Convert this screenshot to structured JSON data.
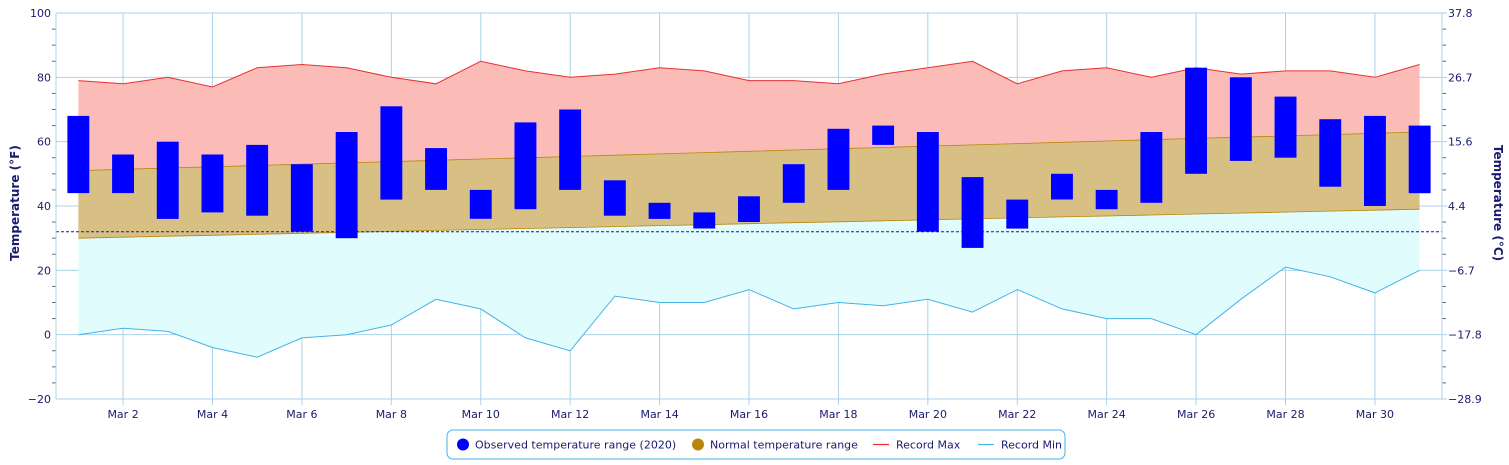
{
  "chart_data": {
    "type": "bar",
    "categories": [
      "Mar 1",
      "Mar 2",
      "Mar 3",
      "Mar 4",
      "Mar 5",
      "Mar 6",
      "Mar 7",
      "Mar 8",
      "Mar 9",
      "Mar 10",
      "Mar 11",
      "Mar 12",
      "Mar 13",
      "Mar 14",
      "Mar 15",
      "Mar 16",
      "Mar 17",
      "Mar 18",
      "Mar 19",
      "Mar 20",
      "Mar 21",
      "Mar 22",
      "Mar 23",
      "Mar 24",
      "Mar 25",
      "Mar 26",
      "Mar 27",
      "Mar 28",
      "Mar 29",
      "Mar 30",
      "Mar 31"
    ],
    "x_tick_labels": [
      "Mar 2",
      "Mar 4",
      "Mar 6",
      "Mar 8",
      "Mar 10",
      "Mar 12",
      "Mar 14",
      "Mar 16",
      "Mar 18",
      "Mar 20",
      "Mar 22",
      "Mar 24",
      "Mar 26",
      "Mar 28",
      "Mar 30"
    ],
    "ylabel": "Temperature (°F)",
    "y2label": "Temperature (°C)",
    "ylim": [
      -20,
      100
    ],
    "y_ticks": [
      "−20",
      "0",
      "20",
      "40",
      "60",
      "80",
      "100"
    ],
    "y2_ticks": [
      "−28.9",
      "−17.8",
      "−6.7",
      "4.4",
      "15.6",
      "26.7",
      "37.8"
    ],
    "freezing_line": 32,
    "grid": true,
    "legend_position": "bottom-center",
    "colors": {
      "observed": "#0000ff",
      "normal_fill": "#d8c084",
      "normal_edge": "#b8860b",
      "normal_legend": "#b8860b",
      "record_max_line": "#e83030",
      "record_max_fill": "#fbbcb8",
      "record_min_line": "#43b3e8",
      "record_min_fill": "#e0fcfc",
      "grid": "#a9d3ea",
      "axis": "#1a1a6e",
      "freezing": "#1a1a8e"
    },
    "series": [
      {
        "name": "Observed temperature range (2020)",
        "low": [
          44,
          44,
          36,
          38,
          37,
          32,
          30,
          42,
          45,
          36,
          39,
          45,
          37,
          36,
          33,
          35,
          41,
          45,
          59,
          32,
          27,
          33,
          42,
          39,
          41,
          50,
          54,
          55,
          46,
          40,
          44
        ],
        "high": [
          68,
          56,
          60,
          56,
          59,
          53,
          63,
          71,
          58,
          45,
          66,
          70,
          48,
          41,
          38,
          43,
          53,
          64,
          65,
          63,
          49,
          42,
          50,
          45,
          63,
          83,
          80,
          74,
          67,
          68,
          65
        ]
      },
      {
        "name": "Normal temperature range",
        "low": [
          30,
          30.3,
          30.6,
          30.9,
          31.2,
          31.5,
          31.8,
          32.1,
          32.4,
          32.7,
          33,
          33.3,
          33.6,
          33.9,
          34.2,
          34.5,
          34.8,
          35.1,
          35.4,
          35.7,
          36,
          36.3,
          36.6,
          36.9,
          37.2,
          37.5,
          37.8,
          38.1,
          38.4,
          38.7,
          39
        ],
        "high": [
          51,
          51.4,
          51.8,
          52.2,
          52.6,
          53,
          53.4,
          53.8,
          54.2,
          54.6,
          55,
          55.4,
          55.8,
          56.2,
          56.6,
          57,
          57.4,
          57.8,
          58.2,
          58.6,
          59,
          59.4,
          59.8,
          60.2,
          60.6,
          61,
          61.4,
          61.8,
          62.2,
          62.6,
          63
        ]
      },
      {
        "name": "Record Max",
        "values": [
          79,
          78,
          80,
          77,
          83,
          84,
          83,
          80,
          78,
          85,
          82,
          80,
          81,
          83,
          82,
          79,
          79,
          78,
          81,
          83,
          85,
          78,
          82,
          83,
          80,
          83,
          81,
          82,
          82,
          80,
          84
        ]
      },
      {
        "name": "Record Min",
        "values": [
          0,
          2,
          1,
          -4,
          -7,
          -1,
          0,
          3,
          11,
          8,
          -1,
          -5,
          12,
          10,
          10,
          14,
          8,
          10,
          9,
          11,
          7,
          14,
          8,
          5,
          5,
          0,
          11,
          21,
          18,
          13,
          20
        ]
      }
    ]
  }
}
